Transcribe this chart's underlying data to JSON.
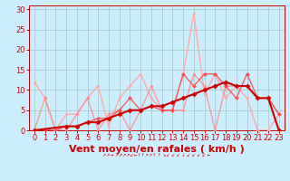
{
  "title": "",
  "xlabel": "Vent moyen/en rafales ( km/h )",
  "bg_color": "#cceeff",
  "grid_color": "#aacccc",
  "xlim": [
    -0.5,
    23.5
  ],
  "ylim": [
    0,
    31
  ],
  "yticks": [
    0,
    5,
    10,
    15,
    20,
    25,
    30
  ],
  "xticks": [
    0,
    1,
    2,
    3,
    4,
    5,
    6,
    7,
    8,
    9,
    10,
    11,
    12,
    13,
    14,
    15,
    16,
    17,
    18,
    19,
    20,
    21,
    22,
    23
  ],
  "series": [
    {
      "x": [
        0,
        1,
        2,
        3,
        4,
        5,
        6,
        7,
        8,
        9,
        10,
        11,
        12,
        13,
        14,
        15,
        16,
        17,
        18,
        19,
        20,
        21,
        22,
        23
      ],
      "y": [
        12,
        8,
        0,
        4,
        4,
        8,
        11,
        1,
        8,
        11,
        14,
        8,
        5,
        5,
        14,
        29,
        9,
        14,
        8,
        11,
        8,
        0,
        0,
        4
      ],
      "color": "#ffaaaa",
      "alpha": 1.0,
      "lw": 1.0,
      "marker": "D",
      "ms": 2.0
    },
    {
      "x": [
        0,
        1,
        2,
        3,
        4,
        5,
        6,
        7,
        8,
        9,
        10,
        11,
        12,
        13,
        14,
        15,
        16,
        17,
        18,
        19,
        20,
        21,
        22,
        23
      ],
      "y": [
        0,
        8,
        0,
        0,
        4,
        8,
        0,
        4,
        5,
        0,
        5,
        11,
        5,
        5,
        5,
        14,
        11,
        0,
        11,
        11,
        11,
        8,
        8,
        4
      ],
      "color": "#ff8888",
      "alpha": 0.8,
      "lw": 1.0,
      "marker": "D",
      "ms": 2.0
    },
    {
      "x": [
        0,
        1,
        2,
        3,
        4,
        5,
        6,
        7,
        8,
        9,
        10,
        11,
        12,
        13,
        14,
        15,
        16,
        17,
        18,
        19,
        20,
        21,
        22,
        23
      ],
      "y": [
        0,
        0,
        0,
        1,
        1,
        2,
        3,
        3,
        5,
        8,
        5,
        6,
        5,
        5,
        14,
        11,
        14,
        14,
        11,
        8,
        14,
        8,
        8,
        4
      ],
      "color": "#ff4444",
      "alpha": 0.85,
      "lw": 1.0,
      "marker": "D",
      "ms": 2.5
    },
    {
      "x": [
        0,
        3,
        4,
        5,
        6,
        7,
        8,
        9,
        10,
        11,
        12,
        13,
        14,
        15,
        16,
        17,
        18,
        19,
        20,
        21,
        22,
        23
      ],
      "y": [
        0,
        1,
        1,
        2,
        2,
        3,
        4,
        5,
        5,
        6,
        6,
        7,
        8,
        9,
        10,
        11,
        12,
        11,
        11,
        8,
        8,
        0
      ],
      "color": "#cc0000",
      "alpha": 1.0,
      "lw": 1.5,
      "marker": "D",
      "ms": 3.0
    }
  ],
  "xlabel_color": "#cc0000",
  "xlabel_fontsize": 8,
  "tick_fontsize": 6,
  "tick_color": "#cc0000",
  "spine_color": "#cc0000"
}
